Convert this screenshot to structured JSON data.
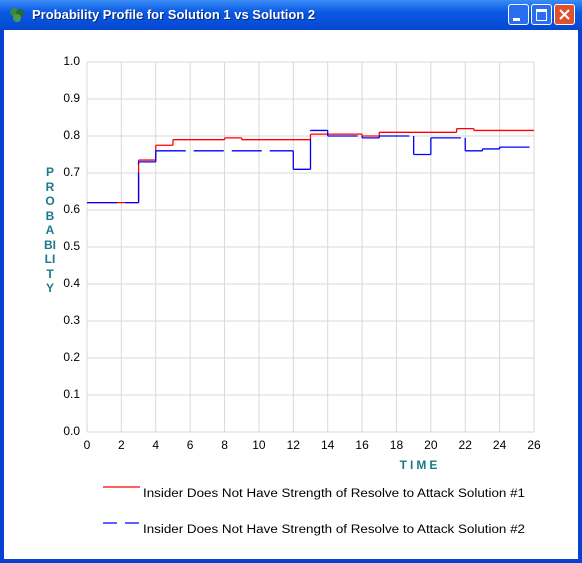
{
  "window_title": "Probability Profile for Solution 1 vs Solution 2",
  "chart_data": {
    "type": "step",
    "xlabel": "TIME",
    "ylabel": "PROBABILITY",
    "xlim": [
      0,
      26
    ],
    "xticks": [
      0,
      2,
      4,
      6,
      8,
      10,
      12,
      14,
      16,
      18,
      20,
      22,
      24,
      26
    ],
    "ylim": [
      0,
      1
    ],
    "yticks": [
      {
        "value": 0,
        "label": "0.0"
      },
      {
        "value": 0.1,
        "label": "0.1"
      },
      {
        "value": 0.2,
        "label": "0.2"
      },
      {
        "value": 0.3,
        "label": "0.3"
      },
      {
        "value": 0.4,
        "label": "0.4"
      },
      {
        "value": 0.5,
        "label": "0.5"
      },
      {
        "value": 0.6,
        "label": "0.6"
      },
      {
        "value": 0.7,
        "label": "0.7"
      },
      {
        "value": 0.8,
        "label": "0.8"
      },
      {
        "value": 0.9,
        "label": "0.9"
      },
      {
        "value": 1,
        "label": "1.0"
      }
    ],
    "grid": true,
    "series": [
      {
        "name": "Insider Does Not Have Strength of Resolve to Attack  Solution #1",
        "color": "#ff0000",
        "dashed": false,
        "x": [
          0,
          3,
          4,
          5,
          8,
          9,
          13,
          16,
          17,
          18,
          21.5,
          22.5
        ],
        "values": [
          0.62,
          0.735,
          0.775,
          0.79,
          0.795,
          0.79,
          0.805,
          0.8,
          0.81,
          0.81,
          0.82,
          0.815
        ]
      },
      {
        "name": "Insider Does Not Have Strength of Resolve to Attack  Solution #2",
        "color": "#0000ff",
        "dashed": true,
        "x": [
          0,
          3,
          4,
          12,
          13,
          14,
          16,
          17,
          19,
          20,
          22,
          23,
          24
        ],
        "values": [
          0.62,
          0.73,
          0.76,
          0.71,
          0.815,
          0.8,
          0.795,
          0.8,
          0.75,
          0.795,
          0.76,
          0.765,
          0.77
        ]
      }
    ]
  }
}
